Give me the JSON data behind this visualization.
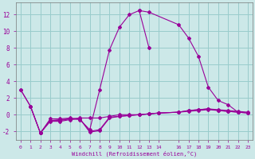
{
  "xlabel": "Windchill (Refroidissement éolien,°C)",
  "bg_color": "#cce8e8",
  "line_color": "#990099",
  "grid_color": "#99cccc",
  "ylim": [
    -3.0,
    13.5
  ],
  "xlim": [
    -0.5,
    23.5
  ],
  "yticks": [
    -2,
    0,
    2,
    4,
    6,
    8,
    10,
    12
  ],
  "xticks": [
    0,
    1,
    2,
    3,
    4,
    5,
    6,
    7,
    8,
    9,
    10,
    11,
    12,
    13,
    14,
    16,
    17,
    18,
    19,
    20,
    21,
    22,
    23
  ],
  "line1_x": [
    0,
    1,
    2,
    3,
    4,
    5,
    6,
    7,
    8,
    9,
    10,
    11,
    12,
    13
  ],
  "line1_y": [
    3.0,
    1.0,
    -2.2,
    -0.5,
    -0.5,
    -0.4,
    -0.6,
    -1.8,
    3.0,
    7.8,
    10.5,
    12.0,
    12.5,
    8.0
  ],
  "line2_x": [
    12,
    13,
    16,
    17,
    18,
    19,
    20,
    21,
    22
  ],
  "line2_y": [
    12.5,
    12.3,
    10.8,
    9.2,
    7.0,
    3.3,
    1.7,
    1.2,
    0.3
  ],
  "line3_x": [
    0,
    1,
    2,
    3,
    4,
    5,
    6,
    7,
    8,
    9,
    10,
    11,
    12,
    13,
    14,
    16,
    17,
    18,
    19,
    20,
    21,
    22,
    23
  ],
  "line3_y": [
    3.0,
    1.0,
    -2.2,
    -0.7,
    -0.6,
    -0.5,
    -0.4,
    -0.4,
    -0.4,
    -0.2,
    0.0,
    0.0,
    0.0,
    0.1,
    0.2,
    0.3,
    0.5,
    0.6,
    0.7,
    0.5,
    0.4,
    0.3,
    0.2
  ],
  "line4_x": [
    1,
    2,
    3,
    4,
    5,
    6,
    7,
    8,
    9,
    10,
    11,
    12,
    13,
    14,
    16,
    17,
    18,
    19,
    20,
    21,
    22,
    23
  ],
  "line4_y": [
    1.0,
    -2.2,
    -0.7,
    -0.7,
    -0.5,
    -0.5,
    -2.0,
    -1.8,
    -0.3,
    -0.2,
    -0.1,
    0.0,
    0.1,
    0.2,
    0.3,
    0.4,
    0.5,
    0.6,
    0.5,
    0.4,
    0.3,
    0.2
  ],
  "line5_x": [
    2,
    3,
    4,
    5,
    6,
    7,
    8,
    9,
    10,
    11,
    12,
    13,
    14,
    16,
    17,
    18,
    19,
    20,
    21,
    22,
    23
  ],
  "line5_y": [
    -2.2,
    -0.8,
    -0.8,
    -0.6,
    -0.5,
    -2.1,
    -1.9,
    -0.4,
    -0.2,
    -0.1,
    0.0,
    0.1,
    0.2,
    0.3,
    0.5,
    0.6,
    0.7,
    0.6,
    0.5,
    0.4,
    0.3
  ]
}
